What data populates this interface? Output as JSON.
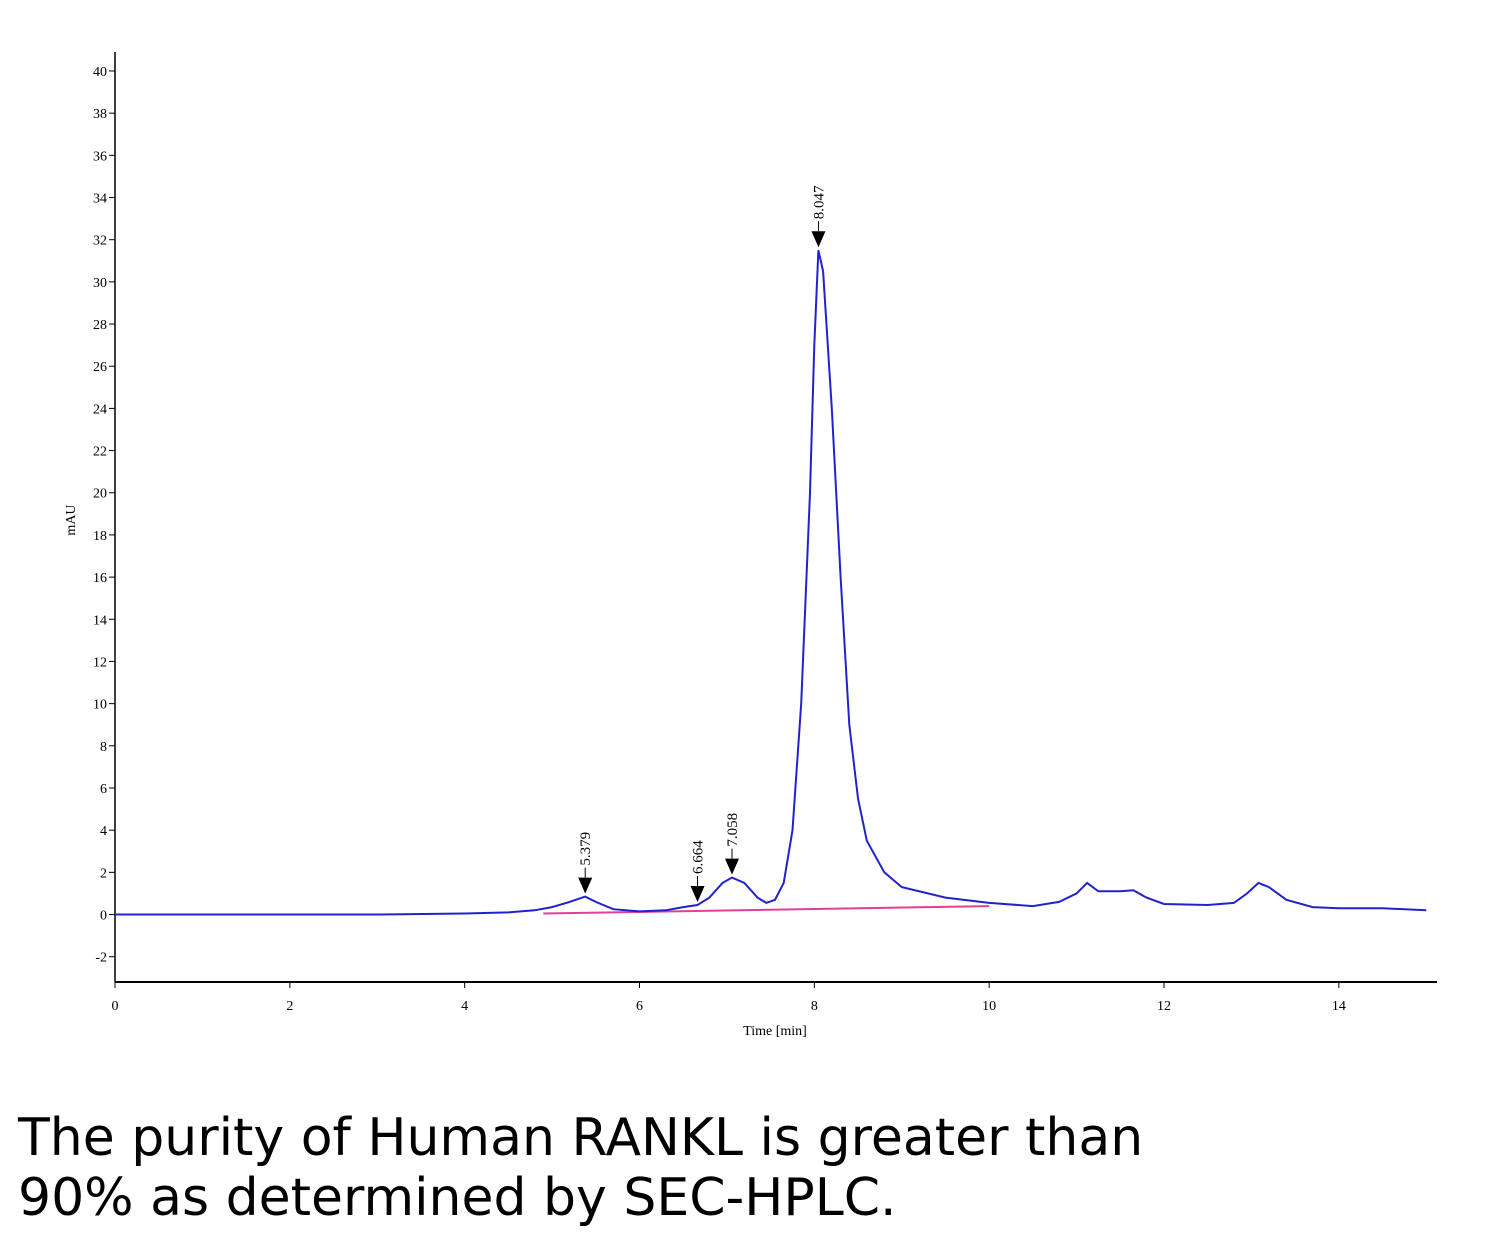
{
  "chart_data": {
    "type": "line",
    "x_label": "Time [min]",
    "y_label": "mAU",
    "xlim": [
      0,
      15.1
    ],
    "ylim": [
      -3.2,
      40.9
    ],
    "xticks": [
      0,
      2,
      4,
      6,
      8,
      10,
      12,
      14
    ],
    "yticks": [
      -2,
      0,
      2,
      4,
      6,
      8,
      10,
      12,
      14,
      16,
      18,
      20,
      22,
      24,
      26,
      28,
      30,
      32,
      34,
      36,
      38,
      40
    ],
    "series": [
      {
        "color": "#2222cc",
        "x": [
          0,
          1,
          2,
          3,
          4,
          4.5,
          4.8,
          5.0,
          5.2,
          5.379,
          5.5,
          5.7,
          6.0,
          6.3,
          6.5,
          6.664,
          6.8,
          6.95,
          7.058,
          7.2,
          7.35,
          7.45,
          7.55,
          7.65,
          7.75,
          7.85,
          7.95,
          8.0,
          8.047,
          8.1,
          8.2,
          8.3,
          8.4,
          8.5,
          8.6,
          8.8,
          9.0,
          9.5,
          10,
          10.5,
          10.8,
          11.0,
          11.12,
          11.25,
          11.5,
          11.65,
          11.8,
          12.0,
          12.5,
          12.8,
          12.95,
          13.08,
          13.2,
          13.4,
          13.7,
          14,
          14.5,
          15
        ],
        "values": [
          0,
          0,
          0,
          0,
          0.05,
          0.1,
          0.2,
          0.35,
          0.6,
          0.85,
          0.6,
          0.25,
          0.15,
          0.2,
          0.35,
          0.45,
          0.8,
          1.5,
          1.75,
          1.5,
          0.8,
          0.55,
          0.7,
          1.5,
          4,
          10,
          20,
          27,
          31.5,
          30.5,
          24,
          16,
          9,
          5.5,
          3.5,
          2,
          1.3,
          0.8,
          0.55,
          0.4,
          0.6,
          1.0,
          1.5,
          1.1,
          1.1,
          1.15,
          0.8,
          0.5,
          0.45,
          0.55,
          1.0,
          1.5,
          1.3,
          0.7,
          0.35,
          0.3,
          0.3,
          0.2
        ]
      },
      {
        "color": "#e0409a",
        "x": [
          4.9,
          10.0
        ],
        "values": [
          0.05,
          0.4
        ]
      }
    ],
    "peaks": [
      5.379,
      6.664,
      7.058,
      8.047
    ]
  },
  "caption": [
    "The purity of Human RANKL is greater than",
    "90% as determined by SEC-HPLC."
  ]
}
